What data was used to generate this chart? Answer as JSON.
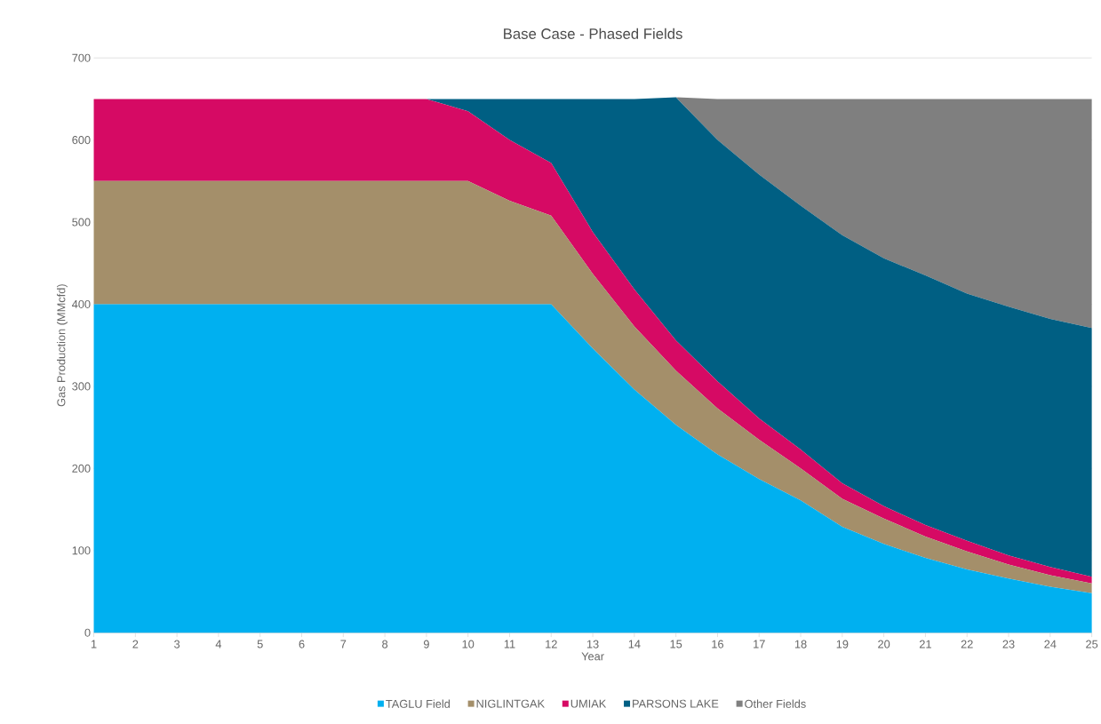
{
  "chart_data": {
    "type": "area",
    "title": "Base Case - Phased Fields",
    "xlabel": "Year",
    "ylabel": "Gas Production (MMcfd)",
    "stacked": true,
    "grid": "y",
    "legend": "bottom",
    "x": [
      1,
      2,
      3,
      4,
      5,
      6,
      7,
      8,
      9,
      10,
      11,
      12,
      13,
      14,
      15,
      16,
      17,
      18,
      19,
      20,
      21,
      22,
      23,
      24,
      25
    ],
    "xlim": [
      1,
      25
    ],
    "xticks": [
      1,
      2,
      3,
      4,
      5,
      6,
      7,
      8,
      9,
      10,
      11,
      12,
      13,
      14,
      15,
      16,
      17,
      18,
      19,
      20,
      21,
      22,
      23,
      24,
      25
    ],
    "ylim": [
      0,
      700
    ],
    "yticks": [
      0,
      100,
      200,
      300,
      400,
      500,
      600,
      700
    ],
    "series": [
      {
        "name": "TAGLU Field",
        "color": "#00b0f0",
        "values": [
          400,
          400,
          400,
          400,
          400,
          400,
          400,
          400,
          400,
          400,
          400,
          400,
          346,
          296,
          253,
          217,
          187,
          161,
          129,
          108,
          91,
          77,
          66,
          56,
          48
        ]
      },
      {
        "name": "NIGLINTGAK",
        "color": "#a48f6a",
        "values": [
          150,
          150,
          150,
          150,
          150,
          150,
          150,
          150,
          150,
          150,
          126,
          108,
          91,
          77,
          66,
          56,
          48,
          39,
          34,
          31,
          26,
          22,
          17,
          14,
          12
        ]
      },
      {
        "name": "UMIAK",
        "color": "#d60a64",
        "values": [
          100,
          100,
          100,
          100,
          100,
          100,
          100,
          100,
          100,
          85,
          74,
          64,
          51,
          45,
          37,
          33,
          26,
          23,
          19,
          15,
          14,
          13,
          11,
          10,
          8
        ]
      },
      {
        "name": "PARSONS LAKE",
        "color": "#005f83",
        "values": [
          0,
          0,
          0,
          0,
          0,
          0,
          0,
          0,
          0,
          15,
          50,
          78,
          162,
          232,
          296,
          294,
          297,
          297,
          302,
          302,
          304,
          301,
          303,
          302,
          303
        ]
      },
      {
        "name": "Other Fields",
        "color": "#7f7f7f",
        "values": [
          0,
          0,
          0,
          0,
          0,
          0,
          0,
          0,
          0,
          0,
          0,
          0,
          0,
          0,
          0,
          50,
          92,
          130,
          166,
          194,
          215,
          237,
          253,
          268,
          279
        ]
      }
    ]
  }
}
